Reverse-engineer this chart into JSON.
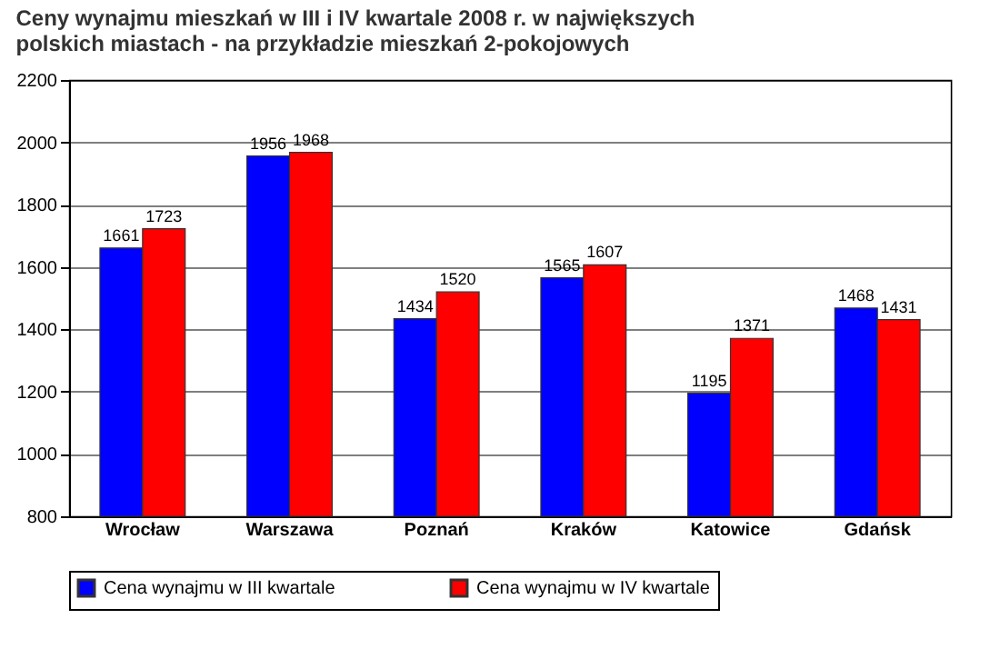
{
  "chart_data": {
    "type": "bar",
    "title": "Ceny wynajmu mieszkań w III i IV kwartale 2008 r. w największych polskich miastach - na przykładzie mieszkań 2-pokojowych",
    "categories": [
      "Wrocław",
      "Warszawa",
      "Poznań",
      "Kraków",
      "Katowice",
      "Gdańsk"
    ],
    "series": [
      {
        "name": "Cena wynajmu w III kwartale",
        "color": "#0000ff",
        "values": [
          1661,
          1956,
          1434,
          1565,
          1195,
          1468
        ]
      },
      {
        "name": "Cena wynajmu w IV kwartale",
        "color": "#ff0000",
        "values": [
          1723,
          1968,
          1520,
          1607,
          1371,
          1431
        ]
      }
    ],
    "ylim": [
      800,
      2200
    ],
    "yticks": [
      800,
      1000,
      1200,
      1400,
      1600,
      1800,
      2000,
      2200
    ],
    "grid": "y",
    "legend": "bottom",
    "data_labels": true
  }
}
